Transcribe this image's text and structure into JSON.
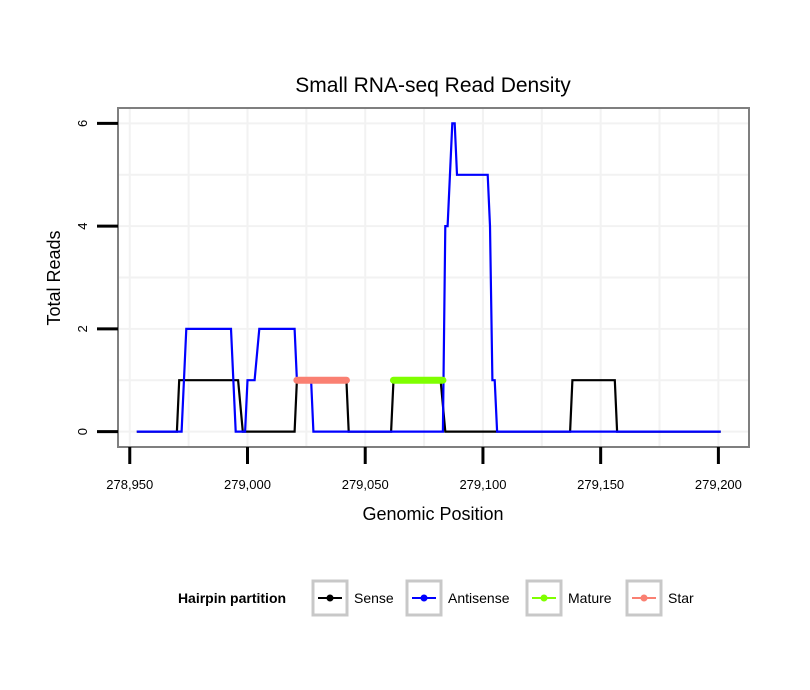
{
  "chart_data": {
    "type": "line",
    "title": "Small RNA-seq Read Density",
    "xlabel": "Genomic Position",
    "ylabel": "Total Reads",
    "xlim": [
      278945,
      279213
    ],
    "ylim": [
      -0.3,
      6.3
    ],
    "x_ticks": [
      278950,
      279000,
      279050,
      279100,
      279150,
      279200
    ],
    "x_tick_labels": [
      "278,950",
      "279,000",
      "279,050",
      "279,100",
      "279,150",
      "279,200"
    ],
    "y_ticks": [
      0,
      2,
      4,
      6
    ],
    "y_tick_labels": [
      "0",
      "2",
      "4",
      "6"
    ],
    "grid": true,
    "legend_position": "bottom",
    "legend_title": "Hairpin partition",
    "series": [
      {
        "name": "Sense",
        "color": "#000000",
        "kind": "step",
        "points": [
          [
            278953,
            0
          ],
          [
            278970,
            0
          ],
          [
            278971,
            1
          ],
          [
            278996,
            1
          ],
          [
            278998,
            0
          ],
          [
            279020,
            0
          ],
          [
            279021,
            1
          ],
          [
            279042,
            1
          ],
          [
            279043,
            0
          ],
          [
            279061,
            0
          ],
          [
            279062,
            1
          ],
          [
            279082,
            1
          ],
          [
            279084,
            0
          ],
          [
            279137,
            0
          ],
          [
            279138,
            1
          ],
          [
            279156,
            1
          ],
          [
            279157,
            0
          ],
          [
            279201,
            0
          ]
        ]
      },
      {
        "name": "Antisense",
        "color": "#0000ff",
        "kind": "step",
        "points": [
          [
            278953,
            0
          ],
          [
            278972,
            0
          ],
          [
            278974,
            2
          ],
          [
            278993,
            2
          ],
          [
            278995,
            0
          ],
          [
            278999,
            0
          ],
          [
            279000,
            1
          ],
          [
            279003,
            1
          ],
          [
            279005,
            2
          ],
          [
            279020,
            2
          ],
          [
            279021,
            1
          ],
          [
            279027,
            1
          ],
          [
            279028,
            0
          ],
          [
            279083,
            0
          ],
          [
            279084,
            4
          ],
          [
            279085,
            4
          ],
          [
            279087,
            6
          ],
          [
            279088,
            6
          ],
          [
            279089,
            5
          ],
          [
            279102,
            5
          ],
          [
            279103,
            4
          ],
          [
            279104,
            1
          ],
          [
            279105,
            1
          ],
          [
            279106,
            0
          ],
          [
            279201,
            0
          ]
        ]
      },
      {
        "name": "Mature",
        "color": "#7fff00",
        "kind": "segment",
        "points": [
          [
            279062,
            1
          ],
          [
            279083,
            1
          ]
        ]
      },
      {
        "name": "Star",
        "color": "#fa8072",
        "kind": "segment",
        "points": [
          [
            279021,
            1
          ],
          [
            279042,
            1
          ]
        ]
      }
    ]
  }
}
